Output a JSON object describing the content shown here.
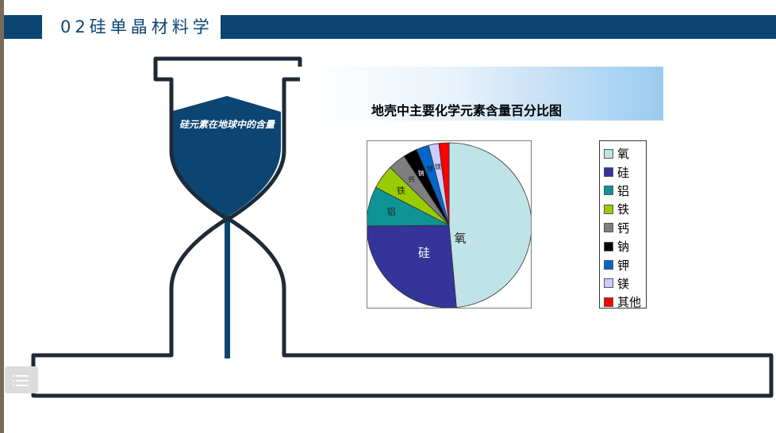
{
  "header": {
    "title": "02硅单晶材料学"
  },
  "hourglass": {
    "label": "硅元素在地球中的含量"
  },
  "colors": {
    "navy": "#0c4572",
    "frame": "#1f2a38"
  },
  "chart_data": {
    "type": "pie",
    "title": "地壳中主要化学元素含量百分比图",
    "slices": [
      {
        "name": "氧",
        "value": 48.6,
        "color": "#bfe3e6",
        "label": "氧"
      },
      {
        "name": "硅",
        "value": 26.3,
        "color": "#34349a",
        "label": "硅"
      },
      {
        "name": "铝",
        "value": 7.73,
        "color": "#0f9494",
        "label": "铝"
      },
      {
        "name": "铁",
        "value": 4.75,
        "color": "#99cc00",
        "label": "铁"
      },
      {
        "name": "钙",
        "value": 3.45,
        "color": "#7f7f7f",
        "label": "钙"
      },
      {
        "name": "钠",
        "value": 2.74,
        "color": "#000000",
        "label": "钠"
      },
      {
        "name": "钾",
        "value": 2.47,
        "color": "#0066cc",
        "label": "钾"
      },
      {
        "name": "镁",
        "value": 2.0,
        "color": "#ccccff",
        "label": "镁"
      },
      {
        "name": "其他",
        "value": 2.0,
        "color": "#ff0000",
        "label": ""
      }
    ],
    "legend_position": "right"
  }
}
